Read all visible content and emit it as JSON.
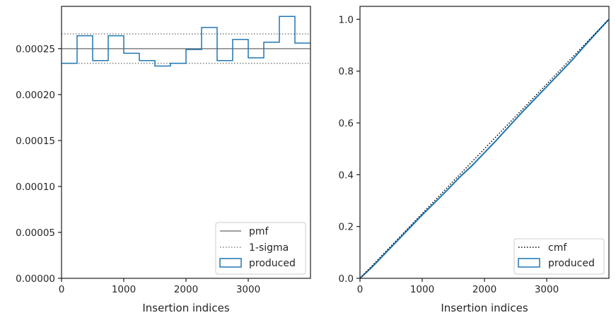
{
  "chart_data": [
    {
      "type": "step-histogram",
      "xlabel": "Insertion indices",
      "ylabel": "",
      "xlim": [
        0,
        4000
      ],
      "ylim": [
        0,
        0.000296
      ],
      "xticks": [
        0,
        1000,
        2000,
        3000
      ],
      "xtick_labels": [
        "0",
        "1000",
        "2000",
        "3000"
      ],
      "yticks": [
        0,
        5e-05,
        0.0001,
        0.00015,
        0.0002,
        0.00025
      ],
      "ytick_labels": [
        "0.00000",
        "0.00005",
        "0.00010",
        "0.00015",
        "0.00020",
        "0.00025"
      ],
      "bin_edges": [
        0,
        250,
        500,
        750,
        1000,
        1250,
        1500,
        1750,
        2000,
        2250,
        2500,
        2750,
        3000,
        3250,
        3500,
        3750,
        4000
      ],
      "bin_values": [
        0.000234,
        0.000264,
        0.000237,
        0.000264,
        0.000245,
        0.000237,
        0.000231,
        0.000234,
        0.000249,
        0.000273,
        0.000237,
        0.00026,
        0.00024,
        0.000257,
        0.000285,
        0.000256
      ],
      "pmf": 0.00025,
      "sigma_upper": 0.000266,
      "sigma_lower": 0.000234,
      "grid": false,
      "legend": {
        "placement": "lower-right",
        "entries": [
          "pmf",
          "1-sigma",
          "produced"
        ]
      },
      "colors": {
        "produced": "#1f77b4",
        "pmf": "#808080",
        "sigma": "#808080"
      }
    },
    {
      "type": "step-cumulative",
      "xlabel": "Insertion indices",
      "ylabel": "",
      "xlim": [
        0,
        4000
      ],
      "ylim": [
        0,
        1.05
      ],
      "xticks": [
        0,
        1000,
        2000,
        3000
      ],
      "xtick_labels": [
        "0",
        "1000",
        "2000",
        "3000"
      ],
      "yticks": [
        0,
        0.2,
        0.4,
        0.6,
        0.8,
        1.0
      ],
      "ytick_labels": [
        "0.0",
        "0.2",
        "0.4",
        "0.6",
        "0.8",
        "1.0"
      ],
      "cmf": {
        "x": [
          0,
          4000
        ],
        "y": [
          0,
          1
        ]
      },
      "produced": {
        "x": [
          0,
          200,
          400,
          600,
          800,
          1000,
          1200,
          1400,
          1600,
          1800,
          2000,
          2200,
          2400,
          2600,
          2800,
          3000,
          3200,
          3400,
          3600,
          3800,
          4000
        ],
        "y": [
          0,
          0.045,
          0.095,
          0.145,
          0.195,
          0.245,
          0.292,
          0.34,
          0.39,
          0.435,
          0.485,
          0.535,
          0.588,
          0.64,
          0.69,
          0.74,
          0.79,
          0.84,
          0.895,
          0.948,
          1.0
        ]
      },
      "grid": false,
      "legend": {
        "placement": "lower-right",
        "entries": [
          "cmf",
          "produced"
        ]
      },
      "colors": {
        "produced": "#1f77b4",
        "cmf": "#000000"
      }
    }
  ]
}
